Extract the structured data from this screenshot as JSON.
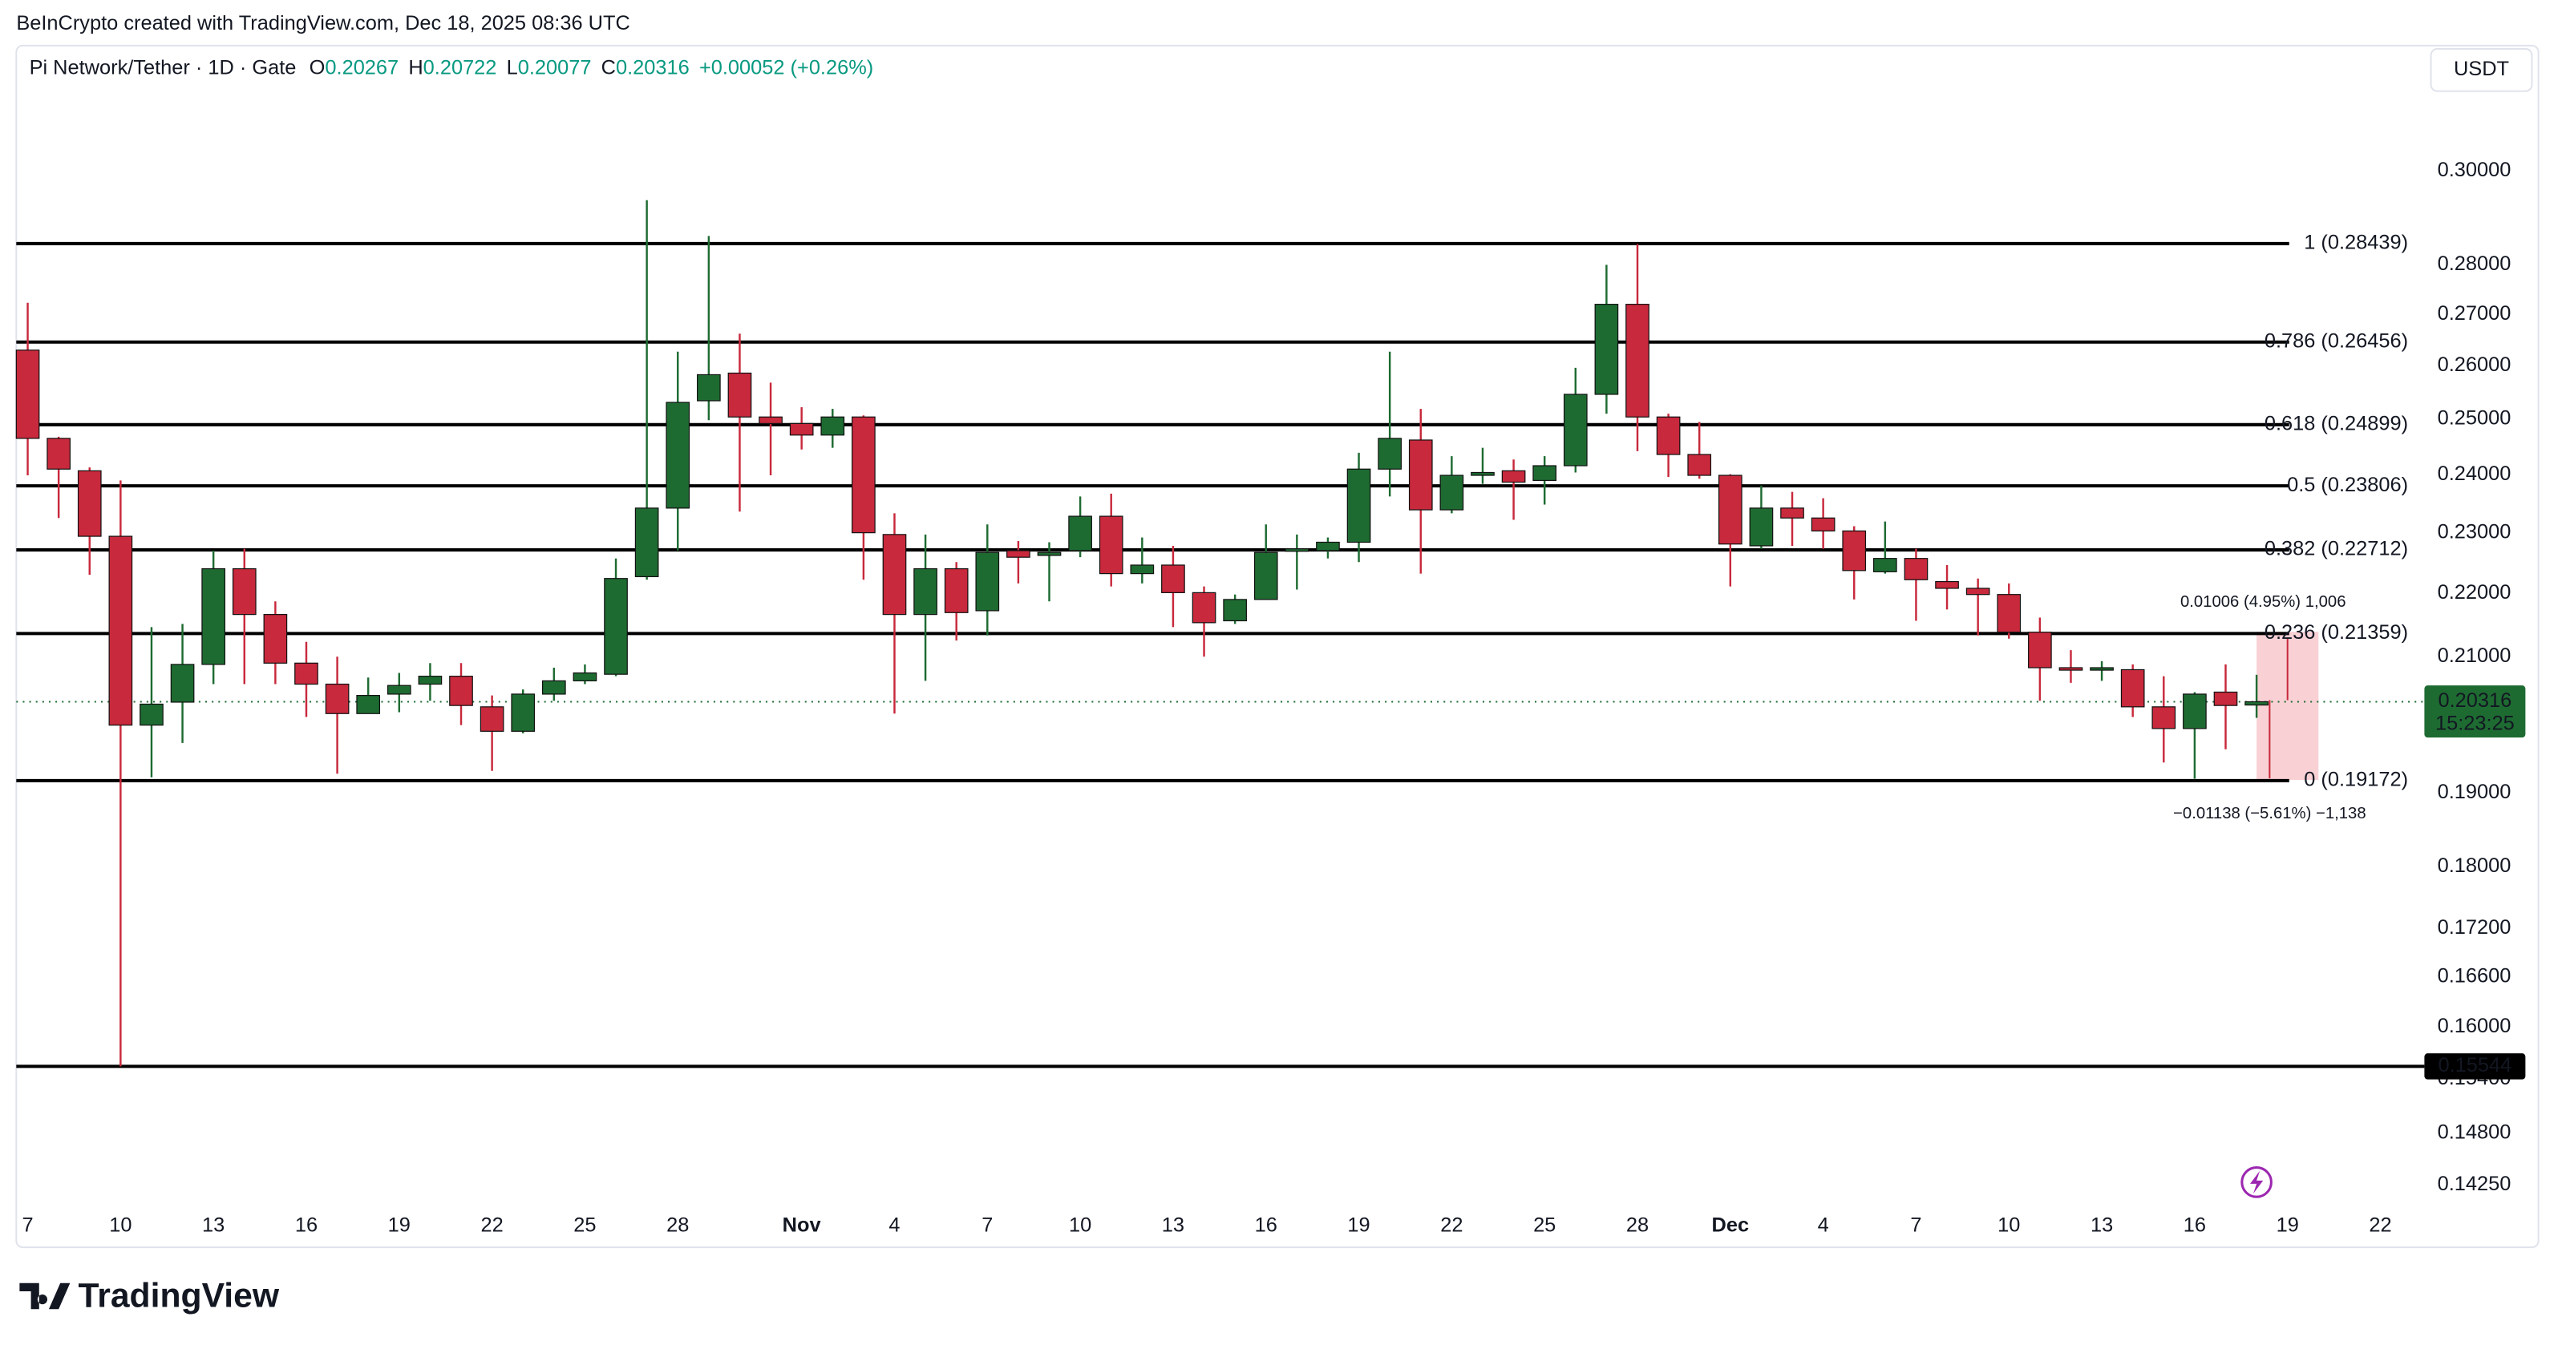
{
  "chart_data": {
    "type": "candlestick",
    "attribution": "BeInCrypto created with TradingView.com, Dec 18, 2025 08:36 UTC",
    "symbol": "Pi Network/Tether · 1D · Gate",
    "ohlc": [
      {
        "label": "O",
        "value": 0.20267
      },
      {
        "label": "H",
        "value": 0.20722
      },
      {
        "label": "L",
        "value": 0.20077
      },
      {
        "label": "C",
        "value": 0.20316
      }
    ],
    "change": "+0.00052 (+0.26%)",
    "currency": "USDT",
    "branding": "TradingView",
    "up_color": "#1e6b32",
    "down_color": "#c8293c",
    "log_scale": true,
    "categories": [
      "7",
      null,
      null,
      "10",
      null,
      null,
      "13",
      null,
      null,
      "16",
      null,
      null,
      "19",
      null,
      null,
      "22",
      null,
      null,
      "25",
      null,
      null,
      "28",
      null,
      null,
      null,
      "Nov",
      null,
      null,
      "4",
      null,
      null,
      "7",
      null,
      null,
      "10",
      null,
      null,
      "13",
      null,
      null,
      "16",
      null,
      null,
      "19",
      null,
      null,
      "22",
      null,
      null,
      "25",
      null,
      null,
      "28",
      null,
      null,
      "Dec",
      null,
      null,
      "4",
      null,
      null,
      "7",
      null,
      null,
      "10",
      null,
      null,
      "13",
      null,
      null,
      "16",
      null,
      null,
      "19",
      null,
      null,
      "22"
    ],
    "open": [
      0.263,
      0.2465,
      0.2407,
      0.2294,
      0.1997,
      0.2031,
      0.2088,
      0.224,
      0.2166,
      0.209,
      0.2058,
      0.2014,
      0.2043,
      0.2058,
      0.207,
      0.2024,
      0.1988,
      0.2043,
      0.2063,
      0.2073,
      0.2227,
      0.2342,
      0.2534,
      0.2586,
      0.2504,
      0.2492,
      0.2471,
      0.2504,
      0.2297,
      0.2166,
      0.224,
      0.2172,
      0.227,
      0.2262,
      0.227,
      0.2328,
      0.2232,
      0.2246,
      0.2201,
      0.2156,
      0.219,
      0.227,
      0.227,
      0.2284,
      0.241,
      0.2462,
      0.2339,
      0.2399,
      0.2407,
      0.239,
      0.2416,
      0.2546,
      0.272,
      0.2504,
      0.2436,
      0.2399,
      0.2278,
      0.2342,
      0.2325,
      0.2303,
      0.2235,
      0.2257,
      0.2219,
      0.2208,
      0.2198,
      0.2138,
      0.2083,
      0.208,
      0.208,
      0.2024,
      0.1992,
      0.2046,
      0.20267,
      null,
      null,
      null,
      null
    ],
    "high": [
      0.2723,
      0.2468,
      0.2413,
      0.239,
      0.2146,
      0.2151,
      0.227,
      0.2273,
      0.2187,
      0.2123,
      0.21,
      0.2068,
      0.2075,
      0.209,
      0.209,
      0.2041,
      0.205,
      0.2083,
      0.2088,
      0.2257,
      0.2936,
      0.2627,
      0.286,
      0.2662,
      0.2568,
      0.2522,
      0.2519,
      0.2507,
      0.2333,
      0.2297,
      0.2251,
      0.2314,
      0.2286,
      0.2284,
      0.2362,
      0.2367,
      0.2292,
      0.2278,
      0.2211,
      0.2198,
      0.2314,
      0.2297,
      0.2292,
      0.2439,
      0.2627,
      0.2519,
      0.2433,
      0.2448,
      0.2427,
      0.2433,
      0.2596,
      0.28,
      0.2843,
      0.251,
      0.2495,
      0.2401,
      0.2381,
      0.237,
      0.2359,
      0.2311,
      0.2319,
      0.2273,
      0.2246,
      0.2224,
      0.2216,
      0.2161,
      0.211,
      0.2093,
      0.2088,
      0.207,
      0.2046,
      0.2088,
      0.20722,
      null,
      null,
      null,
      null
    ],
    "low": [
      0.2399,
      0.2325,
      0.223,
      0.15544,
      0.1922,
      0.1971,
      0.2058,
      0.2058,
      0.2058,
      0.2009,
      0.1927,
      0.2014,
      0.2016,
      0.2033,
      0.1997,
      0.1931,
      0.1985,
      0.2033,
      0.2058,
      0.207,
      0.2222,
      0.227,
      0.2498,
      0.2336,
      0.2399,
      0.2445,
      0.2448,
      0.2222,
      0.2014,
      0.2063,
      0.2125,
      0.2133,
      0.2216,
      0.2187,
      0.2259,
      0.2211,
      0.2216,
      0.2146,
      0.21,
      0.2151,
      0.219,
      0.2206,
      0.2257,
      0.2251,
      0.2362,
      0.2232,
      0.2333,
      0.2384,
      0.2322,
      0.2348,
      0.2404,
      0.251,
      0.2442,
      0.2396,
      0.2393,
      0.2211,
      0.2273,
      0.2278,
      0.2273,
      0.219,
      0.2232,
      0.2156,
      0.2174,
      0.2133,
      0.2128,
      0.2033,
      0.206,
      0.2063,
      0.2009,
      0.1943,
      0.192,
      0.1962,
      0.20077,
      null,
      null,
      null,
      null
    ],
    "close": [
      0.2465,
      0.241,
      0.2294,
      0.1997,
      0.2028,
      0.2088,
      0.224,
      0.2166,
      0.209,
      0.2058,
      0.2014,
      0.2041,
      0.2056,
      0.207,
      0.2026,
      0.1988,
      0.2043,
      0.2063,
      0.2075,
      0.2224,
      0.2342,
      0.2531,
      0.2583,
      0.2504,
      0.2492,
      0.2471,
      0.2504,
      0.23,
      0.2166,
      0.224,
      0.2169,
      0.2267,
      0.2259,
      0.2267,
      0.2328,
      0.2232,
      0.2246,
      0.2201,
      0.2153,
      0.219,
      0.2267,
      0.2273,
      0.2284,
      0.241,
      0.2465,
      0.2339,
      0.2399,
      0.2404,
      0.2387,
      0.2416,
      0.2546,
      0.272,
      0.2504,
      0.2436,
      0.2399,
      0.2281,
      0.2342,
      0.2325,
      0.2303,
      0.2237,
      0.2257,
      0.2222,
      0.2208,
      0.2198,
      0.2138,
      0.2083,
      0.208,
      0.2083,
      0.2024,
      0.1992,
      0.2043,
      0.2026,
      0.20316,
      null,
      null,
      null,
      null
    ],
    "ylim": [
      0.1404,
      0.3289
    ],
    "yticks": [
      {
        "value": 0.3,
        "label": "0.30000"
      },
      {
        "value": 0.28,
        "label": "0.28000"
      },
      {
        "value": 0.27,
        "label": "0.27000"
      },
      {
        "value": 0.26,
        "label": "0.26000"
      },
      {
        "value": 0.25,
        "label": "0.25000"
      },
      {
        "value": 0.24,
        "label": "0.24000"
      },
      {
        "value": 0.23,
        "label": "0.23000"
      },
      {
        "value": 0.22,
        "label": "0.22000"
      },
      {
        "value": 0.21,
        "label": "0.21000"
      },
      {
        "value": 0.19,
        "label": "0.19000"
      },
      {
        "value": 0.18,
        "label": "0.18000"
      },
      {
        "value": 0.172,
        "label": "0.17200"
      },
      {
        "value": 0.166,
        "label": "0.16600"
      },
      {
        "value": 0.16,
        "label": "0.16000"
      },
      {
        "value": 0.154,
        "label": "0.15400"
      },
      {
        "value": 0.148,
        "label": "0.14800"
      },
      {
        "value": 0.1425,
        "label": "0.14250"
      }
    ],
    "fib_levels": [
      {
        "value": 0.28439,
        "label": "1 (0.28439)"
      },
      {
        "value": 0.26456,
        "label": "0.786 (0.26456)"
      },
      {
        "value": 0.24899,
        "label": "0.618 (0.24899)"
      },
      {
        "value": 0.23806,
        "label": "0.5 (0.23806)"
      },
      {
        "value": 0.22712,
        "label": "0.382 (0.22712)"
      },
      {
        "value": 0.21359,
        "label": "0.236 (0.21359)"
      },
      {
        "value": 0.19172,
        "label": "0 (0.19172)"
      }
    ],
    "support_line": 0.15544,
    "last_price": {
      "value": 0.20316,
      "countdown": "15:23:25"
    },
    "measure": {
      "up": "0.01006 (4.95%) 1,006",
      "down": "−0.01138 (−5.61%) −1,138"
    }
  }
}
